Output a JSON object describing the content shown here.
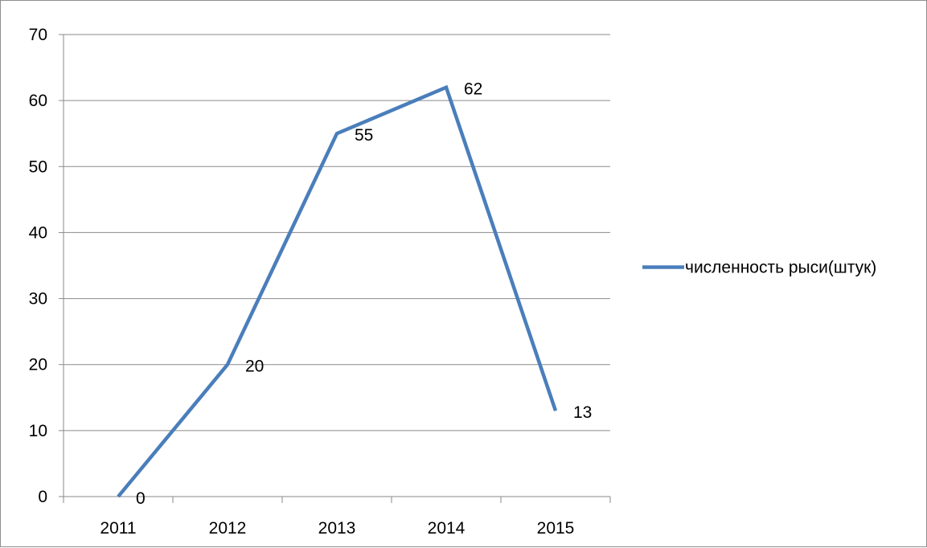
{
  "chart_data": {
    "type": "line",
    "title": "",
    "xlabel": "",
    "ylabel": "",
    "categories": [
      "2011",
      "2012",
      "2013",
      "2014",
      "2015"
    ],
    "series": [
      {
        "name": "численность рыси(штук)",
        "values": [
          0,
          20,
          55,
          62,
          13
        ],
        "color": "#4a7ebb"
      }
    ],
    "ylim": [
      0,
      70
    ],
    "yticks": [
      0,
      10,
      20,
      30,
      40,
      50,
      60,
      70
    ],
    "grid": true,
    "legend": "right",
    "data_labels": true
  }
}
